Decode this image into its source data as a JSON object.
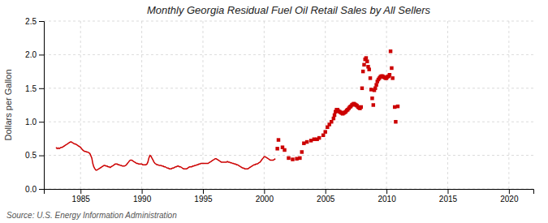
{
  "chart_data": {
    "type": "line",
    "title": "Monthly Georgia Residual Fuel Oil Retail Sales by All Sellers",
    "y_label": "Dollars per Gallon",
    "annotations": [
      "Source: U.S. Energy Information Administration"
    ],
    "xlim": [
      1982,
      2022
    ],
    "ylim": [
      0.0,
      2.5
    ],
    "xticks": [
      1985,
      1990,
      1995,
      2000,
      2005,
      2010,
      2015,
      2020
    ],
    "yticks": [
      {
        "value": 0.0,
        "label": "0.0"
      },
      0.5,
      {
        "value": 1.0,
        "label": "1.0"
      },
      1.5,
      {
        "value": 2.0,
        "label": "2.0"
      },
      2.5
    ],
    "grid": true,
    "series": [
      {
        "type": "line",
        "color": "#cc0000",
        "line_style": "solid",
        "x": [
          1983.0,
          1983.08,
          1983.17,
          1983.25,
          1983.33,
          1983.42,
          1983.5,
          1983.58,
          1983.67,
          1983.75,
          1983.83,
          1983.92,
          1984.0,
          1984.08,
          1984.17,
          1984.25,
          1984.33,
          1984.42,
          1984.5,
          1984.58,
          1984.67,
          1984.75,
          1984.83,
          1984.92,
          1985.0,
          1985.08,
          1985.17,
          1985.25,
          1985.33,
          1985.42,
          1985.5,
          1985.58,
          1985.67,
          1985.75,
          1985.83,
          1985.92,
          1986.0,
          1986.08,
          1986.17,
          1986.25,
          1986.33,
          1986.42,
          1986.5,
          1986.58,
          1986.67,
          1986.75,
          1986.83,
          1986.92,
          1987.0,
          1987.08,
          1987.17,
          1987.25,
          1987.33,
          1987.42,
          1987.5,
          1987.58,
          1987.67,
          1987.75,
          1987.83,
          1987.92,
          1988.0,
          1988.08,
          1988.17,
          1988.25,
          1988.33,
          1988.42,
          1988.5,
          1988.58,
          1988.67,
          1988.75,
          1988.83,
          1988.92,
          1989.0,
          1989.08,
          1989.17,
          1989.25,
          1989.33,
          1989.42,
          1989.5,
          1989.58,
          1989.67,
          1989.75,
          1989.83,
          1989.92,
          1990.0,
          1990.08,
          1990.17,
          1990.25,
          1990.33,
          1990.42,
          1990.5,
          1990.58,
          1990.67,
          1990.75,
          1990.83,
          1990.92,
          1991.0,
          1991.08,
          1991.17,
          1991.25,
          1991.33,
          1991.42,
          1991.5,
          1991.58,
          1991.67,
          1991.75,
          1991.83,
          1991.92,
          1992.0,
          1992.08,
          1992.17,
          1992.25,
          1992.33,
          1992.42,
          1992.5,
          1992.58,
          1992.67,
          1992.75,
          1992.83,
          1992.92,
          1993.0,
          1993.08,
          1993.17,
          1993.25,
          1993.33,
          1993.42,
          1993.5,
          1993.58,
          1993.67,
          1993.75,
          1993.83,
          1993.92,
          1994.0,
          1994.08,
          1994.17,
          1994.25,
          1994.33,
          1994.42,
          1994.5,
          1994.58,
          1994.67,
          1994.75,
          1994.83,
          1994.92,
          1995.0,
          1995.08,
          1995.17,
          1995.25,
          1995.33,
          1995.42,
          1995.5,
          1995.58,
          1995.67,
          1995.75,
          1995.83,
          1995.92,
          1996.0,
          1996.08,
          1996.17,
          1996.25,
          1996.33,
          1996.42,
          1996.5,
          1996.58,
          1996.67,
          1996.75,
          1996.83,
          1996.92,
          1997.0,
          1997.08,
          1997.17,
          1997.25,
          1997.33,
          1997.42,
          1997.5,
          1997.58,
          1997.67,
          1997.75,
          1997.83,
          1997.92,
          1998.0,
          1998.08,
          1998.17,
          1998.25,
          1998.33,
          1998.42,
          1998.5,
          1998.58,
          1998.67,
          1998.75,
          1998.83,
          1998.92,
          1999.0,
          1999.08,
          1999.17,
          1999.25,
          1999.33,
          1999.42,
          1999.5,
          1999.58,
          1999.67,
          1999.75,
          1999.83,
          1999.92,
          2000.0,
          2000.08,
          2000.17,
          2000.25,
          2000.33,
          2000.42,
          2000.5,
          2000.58,
          2000.67,
          2000.75,
          2000.83,
          2000.92
        ],
        "values": [
          0.62,
          0.6,
          0.61,
          0.6,
          0.61,
          0.62,
          0.62,
          0.63,
          0.64,
          0.65,
          0.66,
          0.67,
          0.68,
          0.69,
          0.7,
          0.7,
          0.69,
          0.68,
          0.67,
          0.67,
          0.66,
          0.65,
          0.64,
          0.63,
          0.62,
          0.6,
          0.58,
          0.57,
          0.56,
          0.56,
          0.55,
          0.55,
          0.54,
          0.53,
          0.5,
          0.46,
          0.38,
          0.33,
          0.3,
          0.28,
          0.28,
          0.29,
          0.3,
          0.31,
          0.32,
          0.33,
          0.34,
          0.35,
          0.35,
          0.34,
          0.34,
          0.33,
          0.33,
          0.32,
          0.33,
          0.34,
          0.35,
          0.36,
          0.37,
          0.37,
          0.37,
          0.36,
          0.36,
          0.35,
          0.35,
          0.34,
          0.34,
          0.34,
          0.35,
          0.36,
          0.38,
          0.4,
          0.42,
          0.43,
          0.43,
          0.42,
          0.41,
          0.4,
          0.39,
          0.38,
          0.38,
          0.37,
          0.37,
          0.37,
          0.37,
          0.36,
          0.36,
          0.36,
          0.36,
          0.37,
          0.4,
          0.46,
          0.5,
          0.49,
          0.46,
          0.43,
          0.4,
          0.38,
          0.37,
          0.36,
          0.36,
          0.35,
          0.35,
          0.35,
          0.34,
          0.34,
          0.33,
          0.33,
          0.32,
          0.31,
          0.31,
          0.3,
          0.3,
          0.3,
          0.31,
          0.31,
          0.32,
          0.33,
          0.33,
          0.34,
          0.34,
          0.33,
          0.33,
          0.32,
          0.31,
          0.3,
          0.3,
          0.3,
          0.3,
          0.31,
          0.32,
          0.33,
          0.33,
          0.33,
          0.34,
          0.34,
          0.35,
          0.35,
          0.36,
          0.36,
          0.37,
          0.37,
          0.38,
          0.38,
          0.38,
          0.38,
          0.38,
          0.38,
          0.38,
          0.38,
          0.39,
          0.4,
          0.41,
          0.42,
          0.43,
          0.44,
          0.45,
          0.45,
          0.44,
          0.43,
          0.42,
          0.41,
          0.4,
          0.4,
          0.4,
          0.4,
          0.4,
          0.4,
          0.41,
          0.4,
          0.4,
          0.39,
          0.39,
          0.38,
          0.38,
          0.37,
          0.37,
          0.36,
          0.36,
          0.35,
          0.34,
          0.33,
          0.32,
          0.31,
          0.31,
          0.3,
          0.3,
          0.3,
          0.3,
          0.31,
          0.32,
          0.33,
          0.34,
          0.35,
          0.36,
          0.36,
          0.37,
          0.37,
          0.38,
          0.39,
          0.4,
          0.42,
          0.44,
          0.46,
          0.48,
          0.48,
          0.47,
          0.46,
          0.45,
          0.44,
          0.43,
          0.43,
          0.43,
          0.43,
          0.44,
          0.45
        ]
      },
      {
        "type": "scatter",
        "color": "#cc0000",
        "marker": "square",
        "x": [
          2001.08,
          2001.17,
          2001.5,
          2001.67,
          2002.0,
          2002.33,
          2002.67,
          2002.92,
          2003.08,
          2003.25,
          2003.5,
          2003.83,
          2004.08,
          2004.33,
          2004.5,
          2004.83,
          2005.0,
          2005.17,
          2005.33,
          2005.5,
          2005.67,
          2005.75,
          2005.83,
          2005.92,
          2006.0,
          2006.08,
          2006.17,
          2006.25,
          2006.33,
          2006.42,
          2006.5,
          2006.58,
          2006.67,
          2006.75,
          2006.83,
          2006.92,
          2007.0,
          2007.08,
          2007.17,
          2007.25,
          2007.33,
          2007.42,
          2007.5,
          2007.58,
          2007.67,
          2007.75,
          2007.83,
          2007.92,
          2008.0,
          2008.08,
          2008.17,
          2008.25,
          2008.33,
          2008.42,
          2008.5,
          2008.58,
          2008.67,
          2008.75,
          2008.83,
          2008.92,
          2009.0,
          2009.08,
          2009.17,
          2009.25,
          2009.33,
          2009.42,
          2009.5,
          2009.58,
          2009.67,
          2009.75,
          2009.83,
          2009.92,
          2010.0,
          2010.08,
          2010.17,
          2010.25,
          2010.33,
          2010.42,
          2010.5,
          2010.67,
          2010.75,
          2010.92
        ],
        "values": [
          0.6,
          0.73,
          0.62,
          0.58,
          0.46,
          0.44,
          0.45,
          0.46,
          0.55,
          0.68,
          0.7,
          0.72,
          0.74,
          0.74,
          0.76,
          0.8,
          0.85,
          0.92,
          0.96,
          1.0,
          1.05,
          1.1,
          1.15,
          1.18,
          1.18,
          1.16,
          1.15,
          1.14,
          1.13,
          1.12,
          1.13,
          1.14,
          1.15,
          1.17,
          1.18,
          1.2,
          1.22,
          1.23,
          1.25,
          1.26,
          1.27,
          1.26,
          1.25,
          1.24,
          1.22,
          1.21,
          1.2,
          1.22,
          1.5,
          1.75,
          1.85,
          1.93,
          1.95,
          1.9,
          1.82,
          1.78,
          1.65,
          1.48,
          1.35,
          1.25,
          1.47,
          1.5,
          1.55,
          1.6,
          1.63,
          1.65,
          1.67,
          1.68,
          1.68,
          1.67,
          1.66,
          1.65,
          1.65,
          1.67,
          1.68,
          1.7,
          2.05,
          1.8,
          1.65,
          1.22,
          1.0,
          1.23
        ]
      }
    ]
  }
}
